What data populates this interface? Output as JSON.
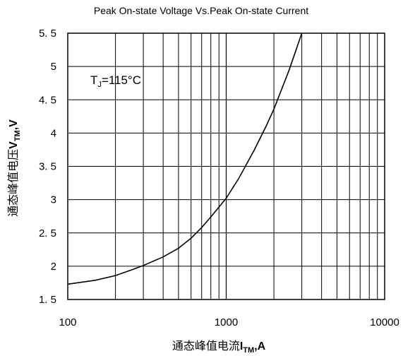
{
  "chart_data": {
    "type": "line",
    "title": "Peak On-state Voltage Vs.Peak On-state Current",
    "xlabel": {
      "prefix": "通态峰值电流",
      "symbol": "I",
      "subscript": "TM",
      "unit": ",A"
    },
    "ylabel": {
      "prefix": "通态峰值电压",
      "symbol": "V",
      "subscript": "TM",
      "unit": ",V"
    },
    "annotation": {
      "symbol": "T",
      "subscript": "J",
      "value": "=115°C"
    },
    "x_scale": "log",
    "xlim": [
      100,
      10000
    ],
    "ylim": [
      1.5,
      5.5
    ],
    "x_ticks": [
      {
        "value": 100,
        "label": "100"
      },
      {
        "value": 1000,
        "label": "1000"
      },
      {
        "value": 10000,
        "label": "10000"
      }
    ],
    "y_ticks": [
      {
        "value": 1.5,
        "label": "1. 5"
      },
      {
        "value": 2,
        "label": "2"
      },
      {
        "value": 2.5,
        "label": "2. 5"
      },
      {
        "value": 3,
        "label": "3"
      },
      {
        "value": 3.5,
        "label": "3. 5"
      },
      {
        "value": 4,
        "label": "4"
      },
      {
        "value": 4.5,
        "label": "4. 5"
      },
      {
        "value": 5,
        "label": "5"
      },
      {
        "value": 5.5,
        "label": "5. 5"
      }
    ],
    "grid": true,
    "series": [
      {
        "x": [
          100,
          150,
          200,
          250,
          300,
          400,
          500,
          600,
          700,
          800,
          1000,
          1200,
          1500,
          1800,
          2000,
          2500,
          3000
        ],
        "y": [
          1.73,
          1.79,
          1.86,
          1.94,
          2.01,
          2.14,
          2.27,
          2.42,
          2.58,
          2.74,
          3.02,
          3.32,
          3.74,
          4.12,
          4.36,
          4.95,
          5.5
        ]
      }
    ]
  }
}
